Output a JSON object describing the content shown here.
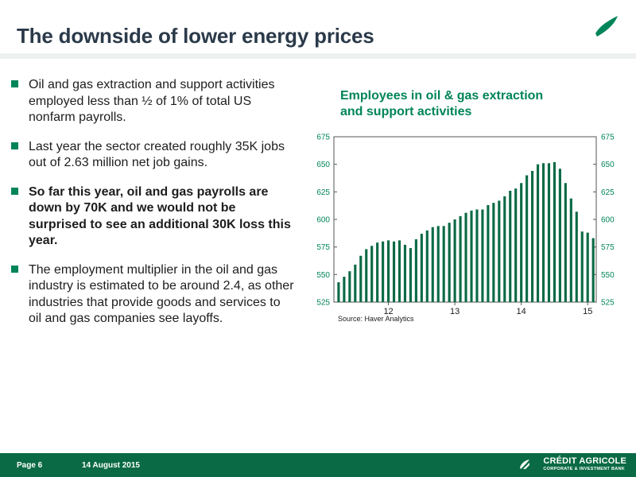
{
  "slide": {
    "title": "The downside of lower energy prices",
    "bullets": [
      {
        "text": "Oil and gas extraction and support activities employed  less than ½ of 1% of total US nonfarm payrolls.",
        "bold": false
      },
      {
        "text": "Last year the sector created roughly 35K jobs out of 2.63 million net job gains.",
        "bold": false
      },
      {
        "text": "So far this year, oil and gas payrolls are down by 70K and we would not be surprised to see an additional 30K loss this year.",
        "bold": true
      },
      {
        "text": "The employment multiplier in the oil and gas industry is estimated to be around 2.4, as other industries that provide goods and services to oil and gas companies see layoffs.",
        "bold": false
      }
    ]
  },
  "footer": {
    "page": "Page 6",
    "date": "14 August 2015",
    "brand": "CRÉDIT AGRICOLE",
    "brand_sub": "CORPORATE & INVESTMENT BANK"
  },
  "colors": {
    "accent": "#00845a",
    "title": "#2b3a4a",
    "footer": "#0a6a45",
    "bars": "#0a6a45"
  },
  "chart_data": {
    "type": "bar",
    "title": "Employees in oil & gas extraction and support activities",
    "title_lines": [
      "Employees in oil & gas extraction",
      "and support activities"
    ],
    "source": "Source: Haver Analytics",
    "xlabel": "",
    "ylabel": "",
    "ylim": [
      525,
      675
    ],
    "yticks": [
      525,
      550,
      575,
      600,
      625,
      650,
      675
    ],
    "y_axes": [
      "left",
      "right"
    ],
    "grid": false,
    "legend": "none",
    "x_tick_labels": [
      {
        "label": "12",
        "index": 9
      },
      {
        "label": "13",
        "index": 21
      },
      {
        "label": "14",
        "index": 33
      },
      {
        "label": "15",
        "index": 45
      }
    ],
    "series": [
      {
        "values": [
          543,
          548,
          553,
          559,
          567,
          573,
          576,
          579,
          580,
          581,
          580,
          581,
          577,
          574,
          582,
          587,
          590,
          593,
          594,
          594,
          597,
          600,
          603,
          606,
          608,
          609,
          609,
          613,
          615,
          617,
          621,
          626,
          628,
          633,
          640,
          644,
          650,
          651,
          651,
          652,
          646,
          633,
          619,
          607,
          589,
          588,
          583
        ]
      }
    ]
  }
}
